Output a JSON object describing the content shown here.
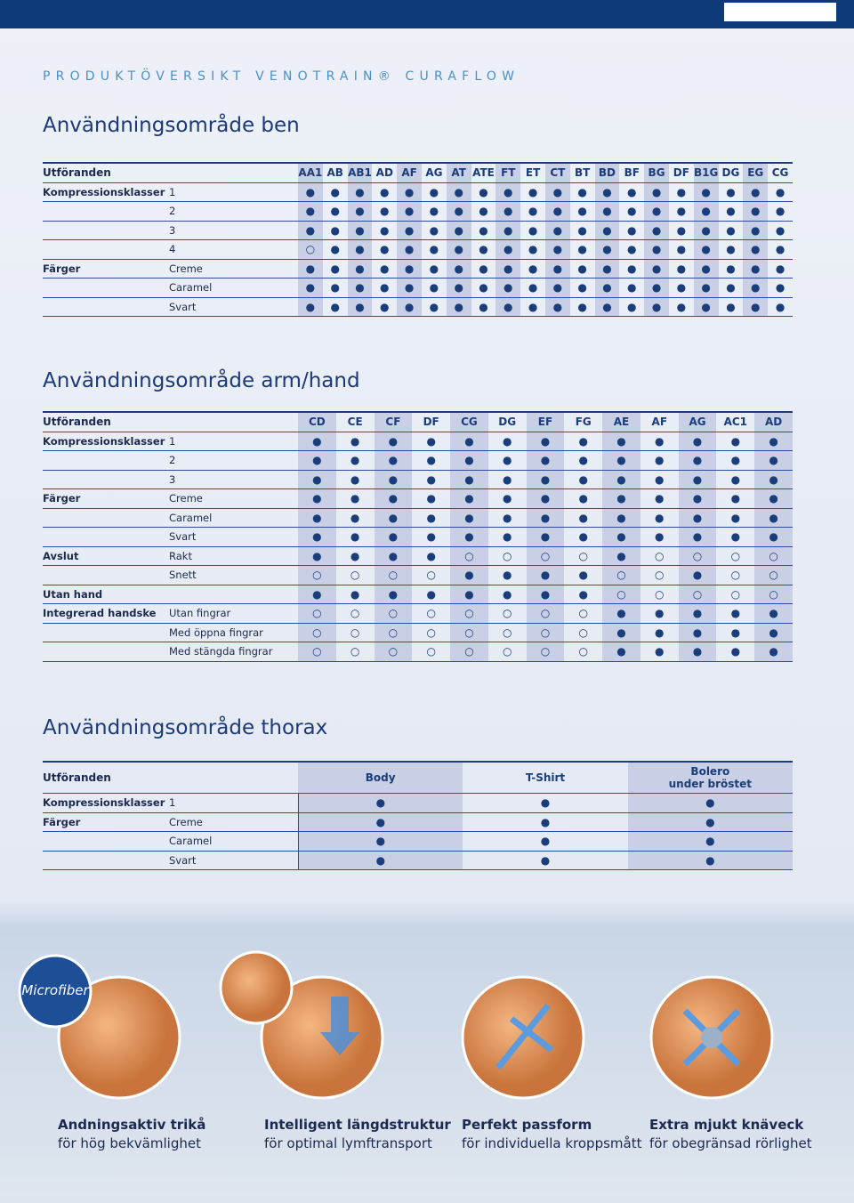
{
  "header": {
    "title": "PRODUKTÖVERSIKT VENOTRAIN® CURAFLOW"
  },
  "sections": [
    {
      "title": "Användningsområde ben",
      "table": {
        "head_label": "Utföranden",
        "columns": [
          "AA1",
          "AB",
          "AB1",
          "AD",
          "AF",
          "AG",
          "AT",
          "ATE",
          "FT",
          "ET",
          "CT",
          "BT",
          "BD",
          "BF",
          "BG",
          "DF",
          "B1G",
          "DG",
          "EG",
          "CG"
        ],
        "rows": [
          {
            "group": "Kompressionsklasser",
            "label": "1",
            "cells": [
              "●",
              "●",
              "●",
              "●",
              "●",
              "●",
              "●",
              "●",
              "●",
              "●",
              "●",
              "●",
              "●",
              "●",
              "●",
              "●",
              "●",
              "●",
              "●",
              "●"
            ]
          },
          {
            "label": "2",
            "cells": [
              "●",
              "●",
              "●",
              "●",
              "●",
              "●",
              "●",
              "●",
              "●",
              "●",
              "●",
              "●",
              "●",
              "●",
              "●",
              "●",
              "●",
              "●",
              "●",
              "●"
            ]
          },
          {
            "label": "3",
            "cells": [
              "●",
              "●",
              "●",
              "●",
              "●",
              "●",
              "●",
              "●",
              "●",
              "●",
              "●",
              "●",
              "●",
              "●",
              "●",
              "●",
              "●",
              "●",
              "●",
              "●"
            ]
          },
          {
            "label": "4",
            "cells": [
              "○",
              "●",
              "●",
              "●",
              "●",
              "●",
              "●",
              "●",
              "●",
              "●",
              "●",
              "●",
              "●",
              "●",
              "●",
              "●",
              "●",
              "●",
              "●",
              "●"
            ]
          },
          {
            "group": "Färger",
            "label": "Creme",
            "cells": [
              "●",
              "●",
              "●",
              "●",
              "●",
              "●",
              "●",
              "●",
              "●",
              "●",
              "●",
              "●",
              "●",
              "●",
              "●",
              "●",
              "●",
              "●",
              "●",
              "●"
            ]
          },
          {
            "label": "Caramel",
            "cells": [
              "●",
              "●",
              "●",
              "●",
              "●",
              "●",
              "●",
              "●",
              "●",
              "●",
              "●",
              "●",
              "●",
              "●",
              "●",
              "●",
              "●",
              "●",
              "●",
              "●"
            ]
          },
          {
            "label": "Svart",
            "cells": [
              "●",
              "●",
              "●",
              "●",
              "●",
              "●",
              "●",
              "●",
              "●",
              "●",
              "●",
              "●",
              "●",
              "●",
              "●",
              "●",
              "●",
              "●",
              "●",
              "●"
            ]
          }
        ]
      }
    },
    {
      "title": "Användningsområde arm/hand",
      "table": {
        "head_label": "Utföranden",
        "columns": [
          "CD",
          "CE",
          "CF",
          "DF",
          "CG",
          "DG",
          "EF",
          "FG",
          "AE",
          "AF",
          "AG",
          "AC1",
          "AD"
        ],
        "rows": [
          {
            "group": "Kompressionsklasser",
            "label": "1",
            "cells": [
              "●",
              "●",
              "●",
              "●",
              "●",
              "●",
              "●",
              "●",
              "●",
              "●",
              "●",
              "●",
              "●"
            ]
          },
          {
            "label": "2",
            "cells": [
              "●",
              "●",
              "●",
              "●",
              "●",
              "●",
              "●",
              "●",
              "●",
              "●",
              "●",
              "●",
              "●"
            ]
          },
          {
            "label": "3",
            "cells": [
              "●",
              "●",
              "●",
              "●",
              "●",
              "●",
              "●",
              "●",
              "●",
              "●",
              "●",
              "●",
              "●"
            ]
          },
          {
            "group": "Färger",
            "label": "Creme",
            "cells": [
              "●",
              "●",
              "●",
              "●",
              "●",
              "●",
              "●",
              "●",
              "●",
              "●",
              "●",
              "●",
              "●"
            ]
          },
          {
            "label": "Caramel",
            "cells": [
              "●",
              "●",
              "●",
              "●",
              "●",
              "●",
              "●",
              "●",
              "●",
              "●",
              "●",
              "●",
              "●"
            ]
          },
          {
            "label": "Svart",
            "cells": [
              "●",
              "●",
              "●",
              "●",
              "●",
              "●",
              "●",
              "●",
              "●",
              "●",
              "●",
              "●",
              "●"
            ]
          },
          {
            "group": "Avslut",
            "label": "Rakt",
            "cells": [
              "●",
              "●",
              "●",
              "●",
              "○",
              "○",
              "○",
              "○",
              "●",
              "○",
              "○",
              "○",
              "○"
            ]
          },
          {
            "label": "Snett",
            "cells": [
              "○",
              "○",
              "○",
              "○",
              "●",
              "●",
              "●",
              "●",
              "○",
              "○",
              "●",
              "○",
              "○"
            ]
          },
          {
            "group": "Utan hand",
            "cells": [
              "●",
              "●",
              "●",
              "●",
              "●",
              "●",
              "●",
              "●",
              "○",
              "○",
              "○",
              "○",
              "○"
            ]
          },
          {
            "group": "Integrerad handske",
            "label": "Utan fingrar",
            "cells": [
              "○",
              "○",
              "○",
              "○",
              "○",
              "○",
              "○",
              "○",
              "●",
              "●",
              "●",
              "●",
              "●"
            ]
          },
          {
            "label": "Med öppna fingrar",
            "cells": [
              "○",
              "○",
              "○",
              "○",
              "○",
              "○",
              "○",
              "○",
              "●",
              "●",
              "●",
              "●",
              "●"
            ]
          },
          {
            "label": "Med stängda fingrar",
            "cells": [
              "○",
              "○",
              "○",
              "○",
              "○",
              "○",
              "○",
              "○",
              "●",
              "●",
              "●",
              "●",
              "●"
            ]
          }
        ]
      }
    },
    {
      "title": "Användningsområde thorax",
      "table": {
        "head_label": "Utföranden",
        "columns": [
          "Body",
          "T-Shirt",
          "Bolero\nunder bröstet"
        ],
        "rows": [
          {
            "group": "Kompressionsklasser",
            "label": "1",
            "cells": [
              "●",
              "●",
              "●"
            ]
          },
          {
            "group": "Färger",
            "label": "Creme",
            "cells": [
              "●",
              "●",
              "●"
            ]
          },
          {
            "label": "Caramel",
            "cells": [
              "●",
              "●",
              "●"
            ]
          },
          {
            "label": "Svart",
            "cells": [
              "●",
              "●",
              "●"
            ]
          }
        ]
      }
    }
  ],
  "badge": "Microfiber",
  "features": [
    {
      "title": "Andningsaktiv trikå",
      "subtitle": "för hög bekvämlighet"
    },
    {
      "title": "Intelligent längdstruktur",
      "subtitle": "för optimal lymftransport"
    },
    {
      "title": "Perfekt passform",
      "subtitle": "för individuella kroppsmått"
    },
    {
      "title": "Extra mjukt knäveck",
      "subtitle": "för obegränsad rörlighet"
    }
  ]
}
